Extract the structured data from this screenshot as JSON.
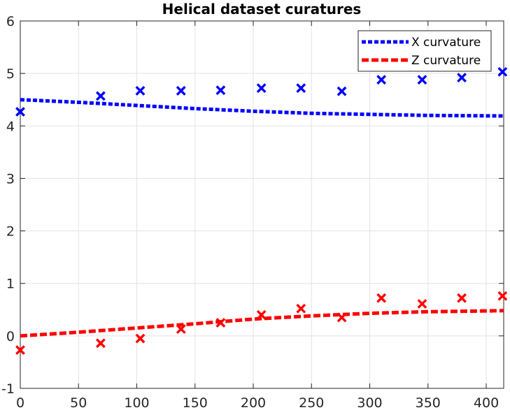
{
  "chart_data": {
    "type": "line",
    "title": "Helical dataset curatures",
    "xlabel": "",
    "ylabel": "",
    "xlim": [
      0,
      415
    ],
    "ylim": [
      -1,
      6
    ],
    "xticks": [
      0,
      50,
      100,
      150,
      200,
      250,
      300,
      350,
      400
    ],
    "yticks": [
      -1,
      0,
      1,
      2,
      3,
      4,
      5,
      6
    ],
    "grid": true,
    "legend_position": "top-right",
    "series": [
      {
        "name": "X curvature",
        "color": "#0000ff",
        "style": "dotted-line",
        "x": [
          0,
          50,
          100,
          150,
          200,
          250,
          300,
          350,
          415
        ],
        "y": [
          4.5,
          4.45,
          4.39,
          4.33,
          4.28,
          4.24,
          4.22,
          4.2,
          4.19
        ]
      },
      {
        "name": "Z curvature",
        "color": "#ff0000",
        "style": "dashed-line",
        "x": [
          0,
          50,
          100,
          150,
          200,
          250,
          300,
          350,
          415
        ],
        "y": [
          0.0,
          0.07,
          0.15,
          0.23,
          0.32,
          0.38,
          0.43,
          0.46,
          0.48
        ]
      },
      {
        "color": "#0000ff",
        "style": "x-markers",
        "x": [
          0,
          69,
          103,
          138,
          172,
          207,
          241,
          276,
          310,
          345,
          379,
          414
        ],
        "y": [
          4.27,
          4.57,
          4.67,
          4.67,
          4.68,
          4.72,
          4.72,
          4.66,
          4.88,
          4.88,
          4.92,
          5.03
        ]
      },
      {
        "color": "#ff0000",
        "style": "x-markers",
        "x": [
          0,
          69,
          103,
          138,
          172,
          207,
          241,
          276,
          310,
          345,
          379,
          414
        ],
        "y": [
          -0.27,
          -0.14,
          -0.05,
          0.13,
          0.25,
          0.4,
          0.52,
          0.35,
          0.72,
          0.61,
          0.72,
          0.76
        ]
      }
    ]
  }
}
